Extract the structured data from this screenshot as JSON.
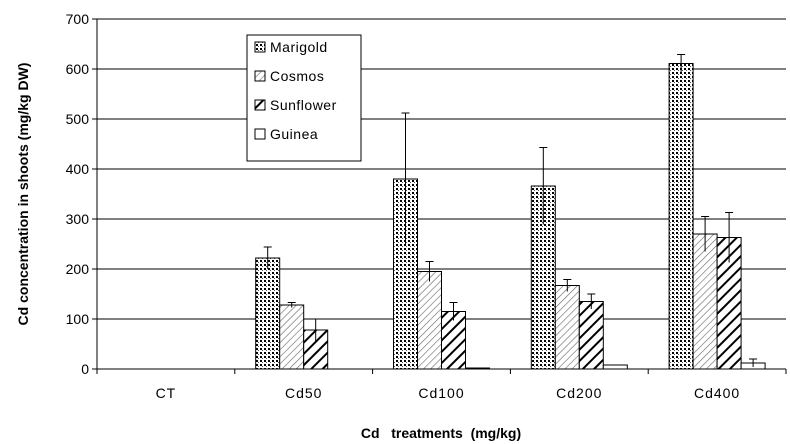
{
  "chart_data": {
    "type": "bar",
    "xlabel": "Cd   treatments  (mg/kg)",
    "ylabel": "Cd concentration  in  shoots  (mg/kg DW)",
    "ylim": [
      0,
      700
    ],
    "yticks": [
      "0",
      "100",
      "200",
      "300",
      "400",
      "500",
      "600",
      "700"
    ],
    "categories": [
      "CT",
      "Cd50",
      "Cd100",
      "Cd200",
      "Cd400"
    ],
    "grid": true,
    "legend_position": "top-left inside plot",
    "series": [
      {
        "name": "Marigold",
        "pattern": "dots",
        "values": [
          0,
          222,
          380,
          366,
          611
        ],
        "errors": [
          0,
          22,
          132,
          77,
          18
        ]
      },
      {
        "name": "Cosmos",
        "pattern": "hatch-light",
        "values": [
          0,
          128,
          195,
          167,
          270
        ],
        "errors": [
          0,
          5,
          20,
          12,
          35
        ]
      },
      {
        "name": "Sunflower",
        "pattern": "hatch-bold",
        "values": [
          0,
          78,
          115,
          135,
          263
        ],
        "errors": [
          0,
          22,
          18,
          15,
          50
        ]
      },
      {
        "name": "Guinea",
        "pattern": "blank",
        "values": [
          0,
          0,
          2,
          8,
          12
        ],
        "errors": [
          0,
          0,
          0,
          0,
          8
        ]
      }
    ]
  }
}
